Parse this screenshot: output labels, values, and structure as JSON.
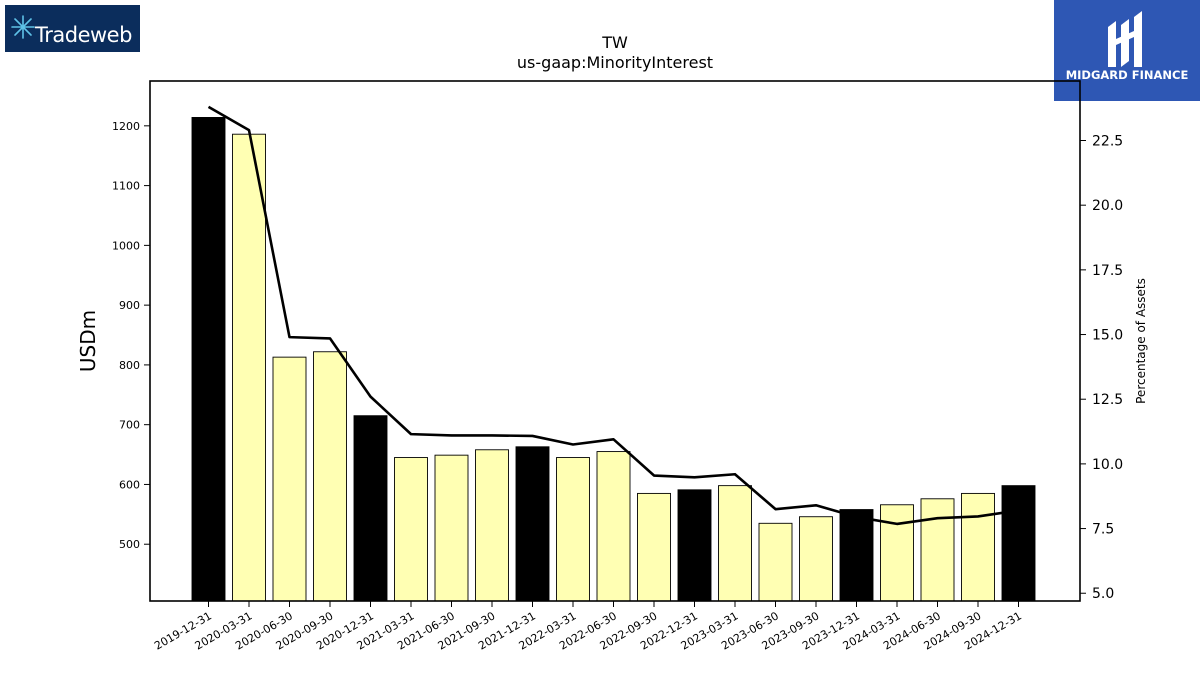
{
  "logos": {
    "left_text": "Tradeweb",
    "right_text": "MIDGARD FINANCE",
    "right_mark": "M"
  },
  "chart_data": {
    "type": "bar",
    "title": "TW",
    "subtitle": "us-gaap:MinorityInterest",
    "ylabel": "USDm",
    "y2label": "Percentage of Assets",
    "ylim": [
      405,
      1275
    ],
    "y2lim": [
      4.7,
      24.8
    ],
    "yticks": [
      500,
      600,
      700,
      800,
      900,
      1000,
      1100,
      1200
    ],
    "y2ticks": [
      "5.0",
      "7.5",
      "10.0",
      "12.5",
      "15.0",
      "17.5",
      "20.0",
      "22.5"
    ],
    "categories": [
      "2019-12-31",
      "2020-03-31",
      "2020-06-30",
      "2020-09-30",
      "2020-12-31",
      "2021-03-31",
      "2021-06-30",
      "2021-09-30",
      "2021-12-31",
      "2022-03-31",
      "2022-06-30",
      "2022-09-30",
      "2022-12-31",
      "2023-03-31",
      "2023-06-30",
      "2023-09-30",
      "2023-12-31",
      "2024-03-31",
      "2024-06-30",
      "2024-09-30",
      "2024-12-31"
    ],
    "series": [
      {
        "values": [
          1214,
          1186,
          813,
          822,
          715,
          645,
          649,
          658,
          663,
          645,
          655,
          585,
          591,
          598,
          535,
          546,
          558,
          566,
          576,
          585,
          598
        ]
      },
      {
        "values": [
          23.8,
          22.9,
          14.9,
          14.85,
          12.6,
          11.15,
          11.1,
          11.1,
          11.08,
          10.75,
          10.95,
          9.55,
          9.48,
          9.6,
          8.25,
          8.4,
          7.95,
          7.68,
          7.9,
          7.97,
          8.2
        ]
      }
    ],
    "year_end_categories": [
      "2019-12-31",
      "2020-12-31",
      "2021-12-31",
      "2022-12-31",
      "2023-12-31",
      "2024-12-31"
    ],
    "colors": {
      "year_end_bar": "#000000",
      "quarter_bar": "#ffffb3",
      "bar_edge": "#000000",
      "line": "#000000"
    },
    "grid": false,
    "legend": "none"
  }
}
